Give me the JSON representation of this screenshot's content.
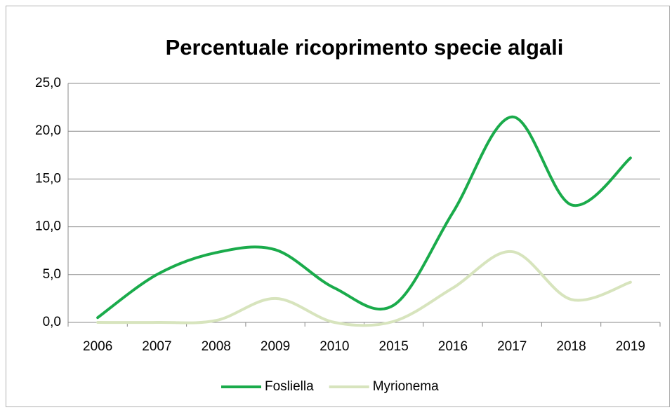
{
  "chart_data": {
    "type": "line",
    "title": "Percentuale ricoprimento specie algali",
    "categories": [
      "2006",
      "2007",
      "2008",
      "2009",
      "2010",
      "2015",
      "2016",
      "2017",
      "2018",
      "2019"
    ],
    "series": [
      {
        "name": "Fosliella",
        "color": "#1aab4b",
        "values": [
          0.5,
          5.0,
          7.3,
          7.6,
          3.6,
          1.8,
          11.5,
          21.5,
          12.3,
          17.2
        ]
      },
      {
        "name": "Myrionema",
        "color": "#d7e4bd",
        "values": [
          0,
          0,
          0.2,
          2.5,
          0,
          0.1,
          3.6,
          7.4,
          2.4,
          4.2
        ]
      }
    ],
    "ylim": [
      0,
      25
    ],
    "yticks": [
      {
        "value": 0,
        "label": "0,0"
      },
      {
        "value": 5,
        "label": "5,0"
      },
      {
        "value": 10,
        "label": "10,0"
      },
      {
        "value": 15,
        "label": "15,0"
      },
      {
        "value": 20,
        "label": "20,0"
      },
      {
        "value": 25,
        "label": "25,0"
      }
    ],
    "grid": true,
    "legend": "bottom",
    "smooth": true
  }
}
